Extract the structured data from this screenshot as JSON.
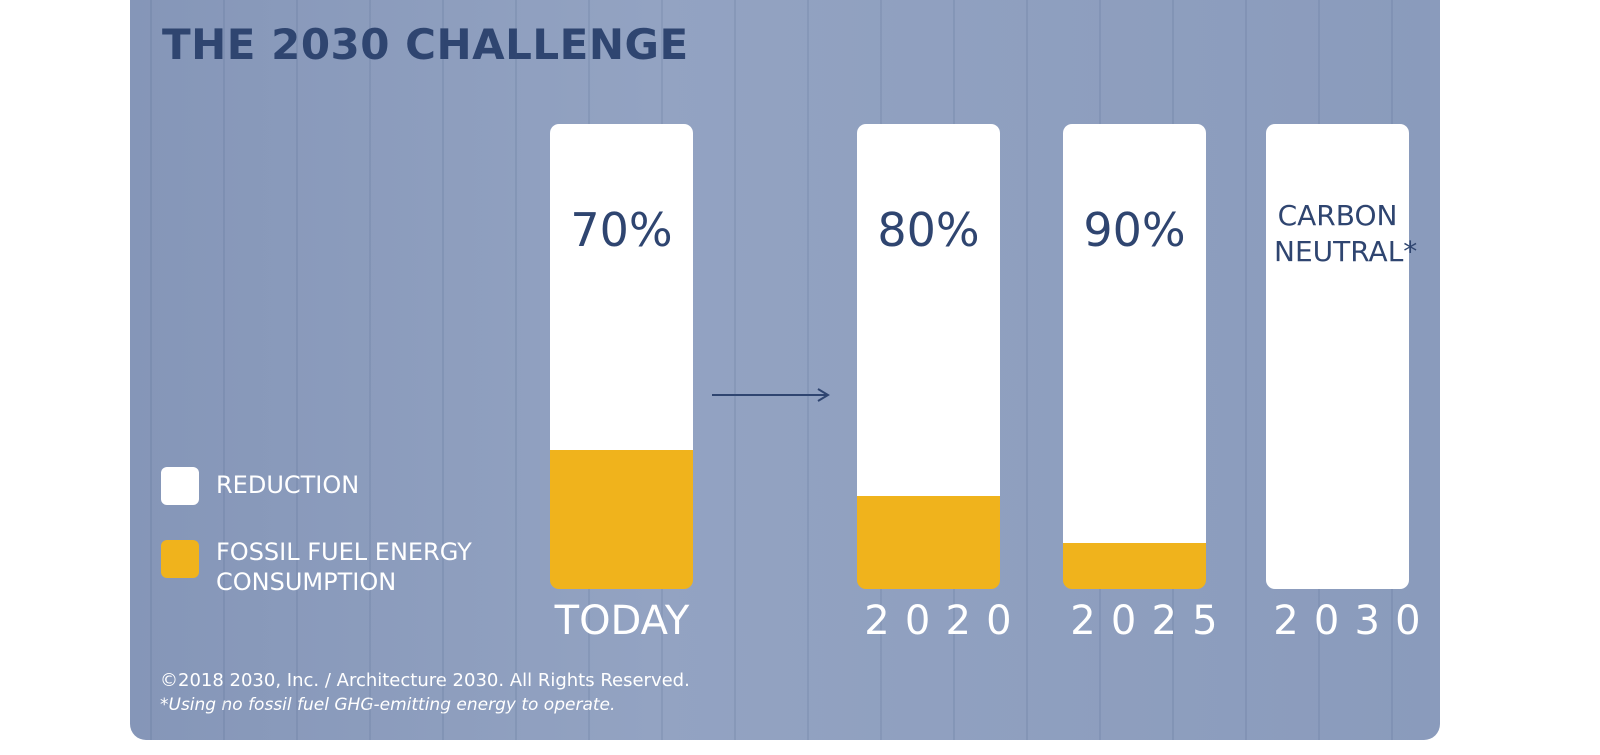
{
  "chart_data": {
    "type": "bar",
    "stacked": true,
    "title": "THE 2030 CHALLENGE",
    "categories": [
      "TODAY",
      "2020",
      "2025",
      "2030"
    ],
    "series": [
      {
        "name": "REDUCTION",
        "color": "#ffffff",
        "values": [
          70,
          80,
          90,
          100
        ],
        "value_labels": [
          "70%",
          "80%",
          "90%",
          "CARBON NEUTRAL*"
        ]
      },
      {
        "name": "FOSSIL FUEL ENERGY CONSUMPTION",
        "color": "#f0b31c",
        "values": [
          30,
          20,
          10,
          0
        ]
      }
    ],
    "annotations": [
      "©2018  2030, Inc. / Architecture 2030. All Rights Reserved.",
      "*Using no fossil fuel GHG-emitting energy to operate."
    ]
  }
}
